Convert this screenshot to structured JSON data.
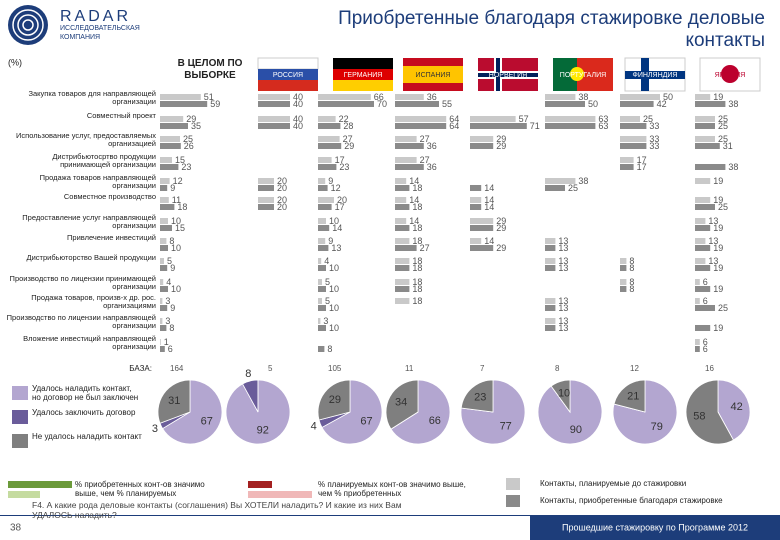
{
  "header": {
    "logo": "RADAR",
    "logo_sub": "ИССЛЕДОВАТЕЛЬСКАЯ КОМПАНИЯ",
    "title": "Приобретенные благодаря стажировке деловые контакты",
    "unit": "(%)"
  },
  "chart_data": [
    {
      "type": "bar-grid",
      "base_label": "БАЗА:",
      "xlim": [
        0,
        100
      ],
      "categories": [
        "Закупка товаров для направляющей организации",
        "Совместный проект",
        "Использование услуг, предоставляемых организацией",
        "Дистрибьютосртво продукции принимающей организации",
        "Продажа товаров направляющей организации",
        "Совместное производство",
        "Предоставление услуг направляющей организации",
        "Привлечение инвестиций",
        "Дистрибьюторство Вашей продукции",
        "Производство по лицензии принимающей организации",
        "Продажа товаров, произв-х др. рос. организациями",
        "Производство по лицензии направляющей организации",
        "Вложение инвестиций направляющей организации"
      ],
      "panels": [
        {
          "name": "В ЦЕЛОМ ПО ВЫБОРКЕ",
          "base": 164
        },
        {
          "name": "РОССИЯ",
          "base": 5
        },
        {
          "name": "ГЕРМАНИЯ",
          "base": 105
        },
        {
          "name": "ИСПАНИЯ",
          "base": 11
        },
        {
          "name": "НОРВЕГИЯ",
          "base": 7
        },
        {
          "name": "ПОРТУГАЛИЯ",
          "base": 8
        },
        {
          "name": "ФИНЛЯНДИЯ",
          "base": 12
        },
        {
          "name": "ЯПОНИЯ",
          "base": 16
        }
      ],
      "series": [
        {
          "name": "Контакты, планируемые до стажировки",
          "color": "#c9c9c9",
          "values": [
            [
              51,
              29,
              25,
              15,
              12,
              11,
              10,
              8,
              5,
              4,
              3,
              3,
              1
            ],
            [
              40,
              40,
              null,
              null,
              20,
              20,
              null,
              null,
              null,
              null,
              null,
              null,
              null
            ],
            [
              66,
              22,
              27,
              17,
              9,
              20,
              10,
              9,
              4,
              5,
              5,
              3,
              null
            ],
            [
              36,
              64,
              27,
              27,
              14,
              14,
              14,
              18,
              18,
              18,
              18,
              null,
              null
            ],
            [
              null,
              57,
              29,
              null,
              null,
              14,
              29,
              14,
              null,
              null,
              null,
              null,
              null
            ],
            [
              38,
              63,
              null,
              null,
              38,
              null,
              null,
              13,
              13,
              null,
              13,
              13,
              null
            ],
            [
              50,
              25,
              33,
              17,
              null,
              null,
              null,
              null,
              8,
              8,
              null,
              null,
              null
            ],
            [
              19,
              25,
              25,
              null,
              19,
              19,
              13,
              13,
              13,
              6,
              6,
              null,
              6
            ]
          ]
        },
        {
          "name": "Контакты, приобретенные благодаря стажировке",
          "color": "#8a8a8a",
          "values": [
            [
              59,
              35,
              26,
              23,
              9,
              18,
              15,
              10,
              9,
              10,
              9,
              8,
              6
            ],
            [
              40,
              40,
              null,
              null,
              20,
              20,
              null,
              null,
              null,
              null,
              null,
              null,
              null
            ],
            [
              70,
              28,
              29,
              23,
              12,
              17,
              14,
              13,
              10,
              10,
              10,
              10,
              8
            ],
            [
              55,
              64,
              36,
              36,
              18,
              18,
              18,
              27,
              18,
              18,
              null,
              null,
              null
            ],
            [
              null,
              71,
              29,
              null,
              14,
              14,
              29,
              29,
              null,
              null,
              null,
              null,
              null
            ],
            [
              50,
              63,
              null,
              null,
              25,
              null,
              null,
              13,
              13,
              null,
              13,
              13,
              null
            ],
            [
              42,
              33,
              33,
              17,
              null,
              null,
              null,
              null,
              8,
              8,
              null,
              null,
              null
            ],
            [
              38,
              25,
              31,
              38,
              null,
              25,
              19,
              19,
              19,
              19,
              25,
              19,
              6
            ]
          ]
        }
      ]
    },
    {
      "type": "pie",
      "labels": [
        "Удалось наладить контакт, но договор не был заключен",
        "Удалось заключить договор",
        "Не удалось наладить контакт"
      ],
      "colors": [
        "#b3a6d0",
        "#6a5c9a",
        "#7f7f7f"
      ],
      "pies": [
        [
          67,
          3,
          31
        ],
        [
          92,
          8,
          0
        ],
        [
          67,
          4,
          29
        ],
        [
          66,
          0,
          34
        ],
        [
          77,
          0,
          23
        ],
        [
          90,
          0,
          10
        ],
        [
          79,
          0,
          21
        ],
        [
          42,
          0,
          58
        ]
      ]
    }
  ],
  "legend": {
    "significance": [
      {
        "label": "% приобретенных конт-ов значимо выше, чем % планируемых",
        "colors": [
          "#6b9a3a",
          "#c5dba0"
        ]
      },
      {
        "label": "% планируемых конт-ов значимо выше, чем % приобретенных",
        "colors": [
          "#a32020",
          "#f0b8b8"
        ]
      }
    ]
  },
  "footer": {
    "page": "38",
    "question": "F4. А какие рода деловые контакты (соглашения) Вы ХОТЕЛИ наладить? И какие из них Вам УДАЛОСЬ наладить?",
    "sample": "Прошедшие стажировку по Программе 2012"
  }
}
